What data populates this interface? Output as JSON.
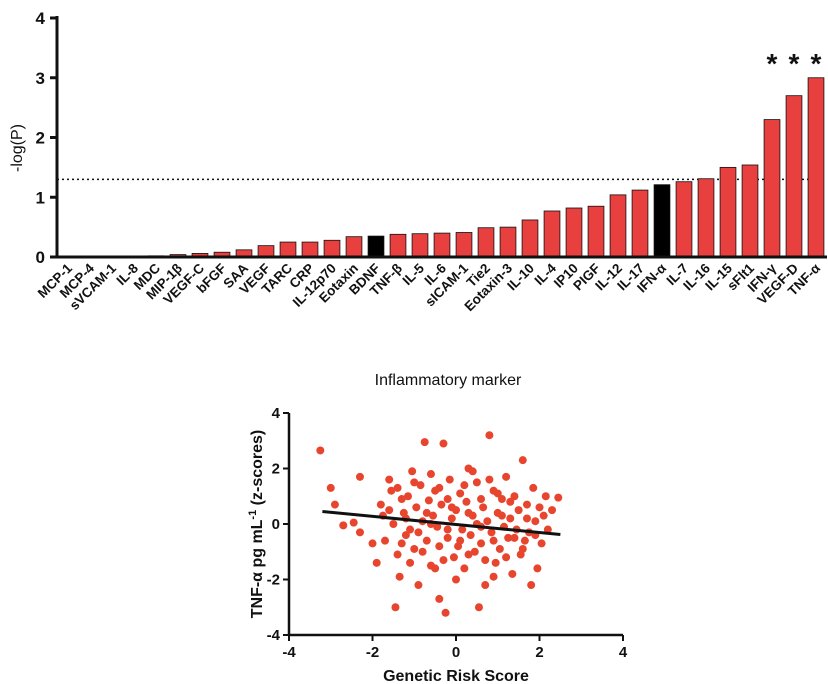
{
  "chart_data": [
    {
      "type": "bar",
      "ylabel": "-log(P)",
      "xlabel": "Inflammatory marker",
      "ylim": [
        0,
        4
      ],
      "yticks": [
        0,
        1,
        2,
        3,
        4
      ],
      "threshold": 1.3,
      "threshold_style": "dotted",
      "colors": {
        "default": "#e8403f",
        "highlight": "#000000"
      },
      "categories": [
        "MCP-1",
        "MCP-4",
        "sVCAM-1",
        "IL-8",
        "MDC",
        "MIP-1β",
        "VEGF-C",
        "bFGF",
        "SAA",
        "VEGF",
        "TARC",
        "CRP",
        "IL-12p70",
        "Eotaxin",
        "BDNF",
        "TNF-β",
        "IL-5",
        "IL-6",
        "sICAM-1",
        "Tie2",
        "Eotaxin-3",
        "IL-10",
        "IL-4",
        "IP10",
        "PIGF",
        "IL-12",
        "IL-17",
        "IFN-α",
        "IL-7",
        "IL-16",
        "IL-15",
        "sFlt1",
        "IFN-γ",
        "VEGF-D",
        "TNF-α"
      ],
      "values": [
        0.01,
        0.01,
        0.01,
        0.01,
        0.02,
        0.04,
        0.06,
        0.08,
        0.12,
        0.19,
        0.25,
        0.25,
        0.28,
        0.34,
        0.35,
        0.38,
        0.39,
        0.4,
        0.41,
        0.49,
        0.5,
        0.62,
        0.77,
        0.82,
        0.85,
        1.04,
        1.12,
        1.21,
        1.26,
        1.31,
        1.5,
        1.54,
        2.3,
        2.7,
        3.0
      ],
      "highlighted": [
        "BDNF",
        "IFN-α"
      ],
      "annotations": [
        {
          "category": "IFN-γ",
          "text": "*"
        },
        {
          "category": "VEGF-D",
          "text": "*"
        },
        {
          "category": "TNF-α",
          "text": "*"
        }
      ]
    },
    {
      "type": "scatter",
      "xlabel": "Genetic Risk Score",
      "ylabel": "TNF-α pg mL-1 (z-scores)",
      "ylabel_main": "TNF-α pg mL",
      "ylabel_sup": "-1",
      "ylabel_tail": " (z-scores)",
      "xlim": [
        -4,
        4
      ],
      "ylim": [
        -4,
        4
      ],
      "xticks": [
        -4,
        -2,
        0,
        2,
        4
      ],
      "yticks": [
        -4,
        -2,
        0,
        2,
        4
      ],
      "point_color": "#e8452f",
      "fit_line": {
        "x": [
          -3.2,
          2.5
        ],
        "y": [
          0.45,
          -0.38
        ]
      },
      "points": [
        [
          -3.25,
          2.65
        ],
        [
          -3.0,
          1.3
        ],
        [
          -2.9,
          0.7
        ],
        [
          -2.45,
          0.05
        ],
        [
          -2.3,
          1.7
        ],
        [
          -2.3,
          -0.3
        ],
        [
          -2.0,
          -0.7
        ],
        [
          -1.9,
          -1.4
        ],
        [
          -1.8,
          0.7
        ],
        [
          -1.75,
          0.3
        ],
        [
          -1.6,
          1.6
        ],
        [
          -1.55,
          1.2
        ],
        [
          -1.5,
          0.0
        ],
        [
          -1.45,
          -3.0
        ],
        [
          -1.4,
          -1.1
        ],
        [
          -1.35,
          -1.9
        ],
        [
          -1.3,
          0.9
        ],
        [
          -1.25,
          0.4
        ],
        [
          -1.2,
          -0.4
        ],
        [
          -1.15,
          1.0
        ],
        [
          -1.1,
          -0.2
        ],
        [
          -1.05,
          1.9
        ],
        [
          -1.0,
          -0.9
        ],
        [
          -0.95,
          0.6
        ],
        [
          -0.9,
          -2.2
        ],
        [
          -0.85,
          1.4
        ],
        [
          -0.8,
          0.1
        ],
        [
          -0.75,
          2.95
        ],
        [
          -0.7,
          -0.6
        ],
        [
          -0.65,
          0.85
        ],
        [
          -0.6,
          -1.5
        ],
        [
          -0.55,
          0.3
        ],
        [
          -0.5,
          1.2
        ],
        [
          -0.45,
          -0.1
        ],
        [
          -0.4,
          -2.7
        ],
        [
          -0.35,
          0.7
        ],
        [
          -0.3,
          2.9
        ],
        [
          -0.25,
          -3.2
        ],
        [
          -0.2,
          -0.5
        ],
        [
          -0.15,
          1.6
        ],
        [
          -0.1,
          0.2
        ],
        [
          -0.05,
          -1.2
        ],
        [
          0.0,
          0.5
        ],
        [
          0.05,
          -0.8
        ],
        [
          0.1,
          1.1
        ],
        [
          0.15,
          -0.2
        ],
        [
          0.2,
          -1.6
        ],
        [
          0.25,
          0.8
        ],
        [
          0.3,
          2.0
        ],
        [
          0.35,
          -0.4
        ],
        [
          0.4,
          0.3
        ],
        [
          0.45,
          -1.0
        ],
        [
          0.5,
          1.5
        ],
        [
          0.55,
          -3.0
        ],
        [
          0.6,
          -0.7
        ],
        [
          0.65,
          0.6
        ],
        [
          0.7,
          -2.2
        ],
        [
          0.75,
          0.1
        ],
        [
          0.8,
          3.2
        ],
        [
          0.85,
          -0.3
        ],
        [
          0.9,
          1.2
        ],
        [
          0.95,
          -1.4
        ],
        [
          1.0,
          0.4
        ],
        [
          1.05,
          -0.9
        ],
        [
          1.1,
          0.9
        ],
        [
          1.15,
          -0.1
        ],
        [
          1.2,
          1.7
        ],
        [
          1.25,
          -0.5
        ],
        [
          1.3,
          0.2
        ],
        [
          1.35,
          -1.8
        ],
        [
          1.4,
          1.0
        ],
        [
          1.45,
          -0.2
        ],
        [
          1.5,
          0.5
        ],
        [
          1.55,
          -1.1
        ],
        [
          1.6,
          2.3
        ],
        [
          1.65,
          -0.6
        ],
        [
          1.7,
          0.7
        ],
        [
          1.75,
          -0.3
        ],
        [
          1.8,
          -2.2
        ],
        [
          1.85,
          1.3
        ],
        [
          1.9,
          0.1
        ],
        [
          1.95,
          -1.6
        ],
        [
          2.0,
          0.6
        ],
        [
          2.05,
          -0.7
        ],
        [
          2.1,
          0.3
        ],
        [
          2.15,
          1.0
        ],
        [
          2.2,
          -0.2
        ],
        [
          2.3,
          0.5
        ],
        [
          2.45,
          0.95
        ],
        [
          -2.7,
          -0.05
        ],
        [
          -1.7,
          -0.6
        ],
        [
          -1.2,
          0.2
        ],
        [
          -0.9,
          -0.3
        ],
        [
          -0.7,
          0.4
        ],
        [
          -0.4,
          -0.8
        ],
        [
          -0.2,
          0.9
        ],
        [
          0.1,
          -0.6
        ],
        [
          0.3,
          0.4
        ],
        [
          0.6,
          -0.1
        ],
        [
          0.9,
          -0.6
        ],
        [
          1.1,
          0.3
        ],
        [
          1.4,
          -0.5
        ],
        [
          1.7,
          0.2
        ],
        [
          -0.5,
          -1.6
        ],
        [
          0.4,
          1.9
        ],
        [
          -1.0,
          1.5
        ],
        [
          0.7,
          -1.3
        ],
        [
          1.2,
          -1.2
        ],
        [
          -0.6,
          1.8
        ],
        [
          0.0,
          -2.0
        ],
        [
          -0.3,
          -1.3
        ],
        [
          0.2,
          1.4
        ],
        [
          0.8,
          1.6
        ],
        [
          -1.3,
          -0.7
        ],
        [
          1.6,
          -0.9
        ],
        [
          -0.8,
          -1.0
        ],
        [
          0.5,
          0.0
        ],
        [
          -0.1,
          0.6
        ],
        [
          1.9,
          -0.4
        ],
        [
          -1.6,
          0.5
        ],
        [
          -0.2,
          -0.2
        ],
        [
          0.3,
          -1.1
        ],
        [
          1.0,
          1.1
        ],
        [
          -0.6,
          0.0
        ],
        [
          0.6,
          0.9
        ],
        [
          -1.1,
          -1.4
        ],
        [
          1.3,
          0.8
        ],
        [
          -0.4,
          1.3
        ],
        [
          0.9,
          -1.9
        ],
        [
          -1.4,
          1.3
        ]
      ]
    }
  ]
}
